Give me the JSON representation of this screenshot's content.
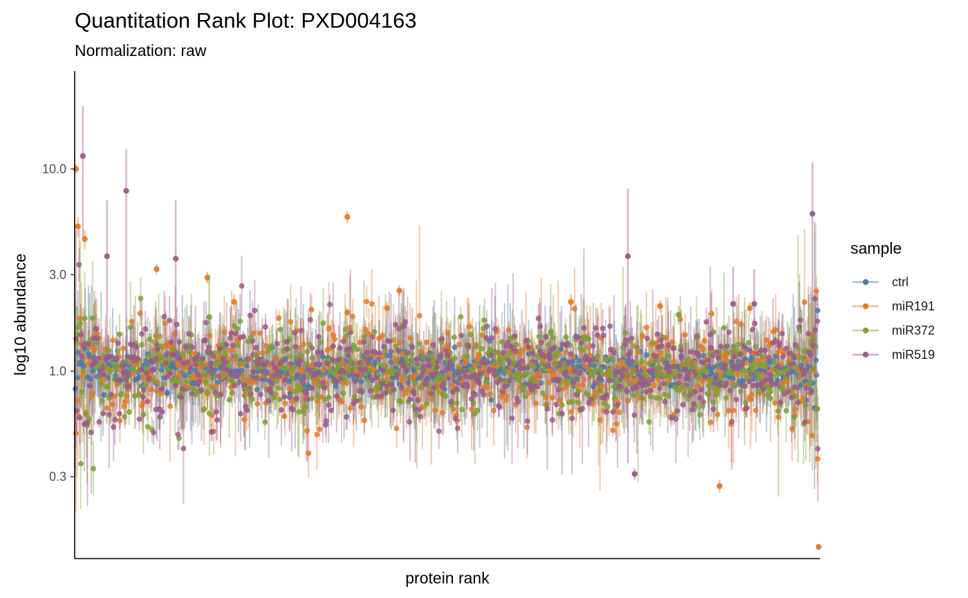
{
  "chart_data": {
    "type": "scatter",
    "title": "Quantitation Rank Plot: PXD004163",
    "subtitle": "Normalization: raw",
    "xlabel": "protein rank",
    "ylabel": "log10 abundance",
    "y_scale": "log10",
    "ylim": [
      0.12,
      30
    ],
    "y_ticks": [
      0.3,
      1.0,
      3.0,
      10.0
    ],
    "y_tick_labels": [
      "0.3",
      "1.0",
      "3.0",
      "10.0"
    ],
    "x_ticks": [],
    "xlim": [
      1,
      1200
    ],
    "grid": false,
    "legend": {
      "title": "sample",
      "position": "right",
      "entries": [
        {
          "name": "ctrl",
          "color": "#4e79a7"
        },
        {
          "name": "miR191",
          "color": "#e07b28"
        },
        {
          "name": "miR372",
          "color": "#7f9f36"
        },
        {
          "name": "miR519",
          "color": "#9b5b8a"
        }
      ]
    },
    "series_style": "points with vertical error bars; many points per rank across ~1200 ranked proteins",
    "series": [
      {
        "name": "ctrl",
        "color": "#4e79a7",
        "mean_level": 1.0,
        "spread": 0.12
      },
      {
        "name": "miR191",
        "color": "#e07b28",
        "mean_level": 1.0,
        "spread": 0.3
      },
      {
        "name": "miR372",
        "color": "#7f9f36",
        "mean_level": 1.0,
        "spread": 0.27
      },
      {
        "name": "miR519",
        "color": "#9b5b8a",
        "mean_level": 1.0,
        "spread": 0.32
      }
    ],
    "outliers": [
      {
        "series": "miR519",
        "x": 12,
        "y": 11.6,
        "lo": 4.5,
        "hi": 20.5
      },
      {
        "series": "miR191",
        "x": 1,
        "y": 10.0,
        "lo": 9.5,
        "hi": 10.5
      },
      {
        "series": "miR519",
        "x": 82,
        "y": 7.8,
        "lo": 1.1,
        "hi": 12.5
      },
      {
        "series": "miR519",
        "x": 51,
        "y": 3.7,
        "lo": 1.2,
        "hi": 7.0
      },
      {
        "series": "miR519",
        "x": 162,
        "y": 3.6,
        "lo": 1.1,
        "hi": 7.0
      },
      {
        "series": "miR191",
        "x": 15,
        "y": 4.5,
        "lo": 4.0,
        "hi": 5.0
      },
      {
        "series": "miR191",
        "x": 4,
        "y": 5.2,
        "lo": 4.6,
        "hi": 5.8
      },
      {
        "series": "miR191",
        "x": 131,
        "y": 3.2,
        "lo": 3.0,
        "hi": 3.4
      },
      {
        "series": "miR191",
        "x": 213,
        "y": 2.9,
        "lo": 2.7,
        "hi": 3.1
      },
      {
        "series": "miR191",
        "x": 256,
        "y": 2.2,
        "lo": 2.0,
        "hi": 2.4
      },
      {
        "series": "miR191",
        "x": 439,
        "y": 5.8,
        "lo": 5.4,
        "hi": 6.2
      },
      {
        "series": "miR191",
        "x": 439,
        "y": 1.95,
        "lo": 1.85,
        "hi": 2.05
      },
      {
        "series": "miR191",
        "x": 523,
        "y": 2.5,
        "lo": 2.35,
        "hi": 2.65
      },
      {
        "series": "miR191",
        "x": 503,
        "y": 2.05,
        "lo": 1.9,
        "hi": 2.2
      },
      {
        "series": "miR191",
        "x": 800,
        "y": 2.2,
        "lo": 2.0,
        "hi": 2.4
      },
      {
        "series": "miR191",
        "x": 944,
        "y": 2.1,
        "lo": 1.95,
        "hi": 2.25
      },
      {
        "series": "miR191",
        "x": 1089,
        "y": 2.05,
        "lo": 1.9,
        "hi": 2.2
      },
      {
        "series": "miR372",
        "x": 216,
        "y": 1.85,
        "lo": 1.2,
        "hi": 3.0
      },
      {
        "series": "miR372",
        "x": 974,
        "y": 1.9,
        "lo": 1.7,
        "hi": 2.1
      },
      {
        "series": "miR519",
        "x": 892,
        "y": 3.7,
        "lo": 0.35,
        "hi": 8.0
      },
      {
        "series": "miR519",
        "x": 1190,
        "y": 6.0,
        "lo": 1.0,
        "hi": 10.8
      },
      {
        "series": "miR519",
        "x": 1062,
        "y": 2.15,
        "lo": 1.0,
        "hi": 3.3
      },
      {
        "series": "miR519",
        "x": 1096,
        "y": 2.15,
        "lo": 1.1,
        "hi": 3.2
      },
      {
        "series": "miR519",
        "x": 220,
        "y": 0.5,
        "lo": 0.45,
        "hi": 0.55
      },
      {
        "series": "miR519",
        "x": 903,
        "y": 0.31,
        "lo": 0.29,
        "hi": 0.33
      },
      {
        "series": "miR191",
        "x": 1040,
        "y": 0.27,
        "lo": 0.25,
        "hi": 0.29
      },
      {
        "series": "miR191",
        "x": 1200,
        "y": 0.135,
        "lo": 0.13,
        "hi": 0.14
      },
      {
        "series": "ctrl",
        "x": 148,
        "y": 0.78,
        "lo": 0.74,
        "hi": 0.82
      }
    ]
  }
}
